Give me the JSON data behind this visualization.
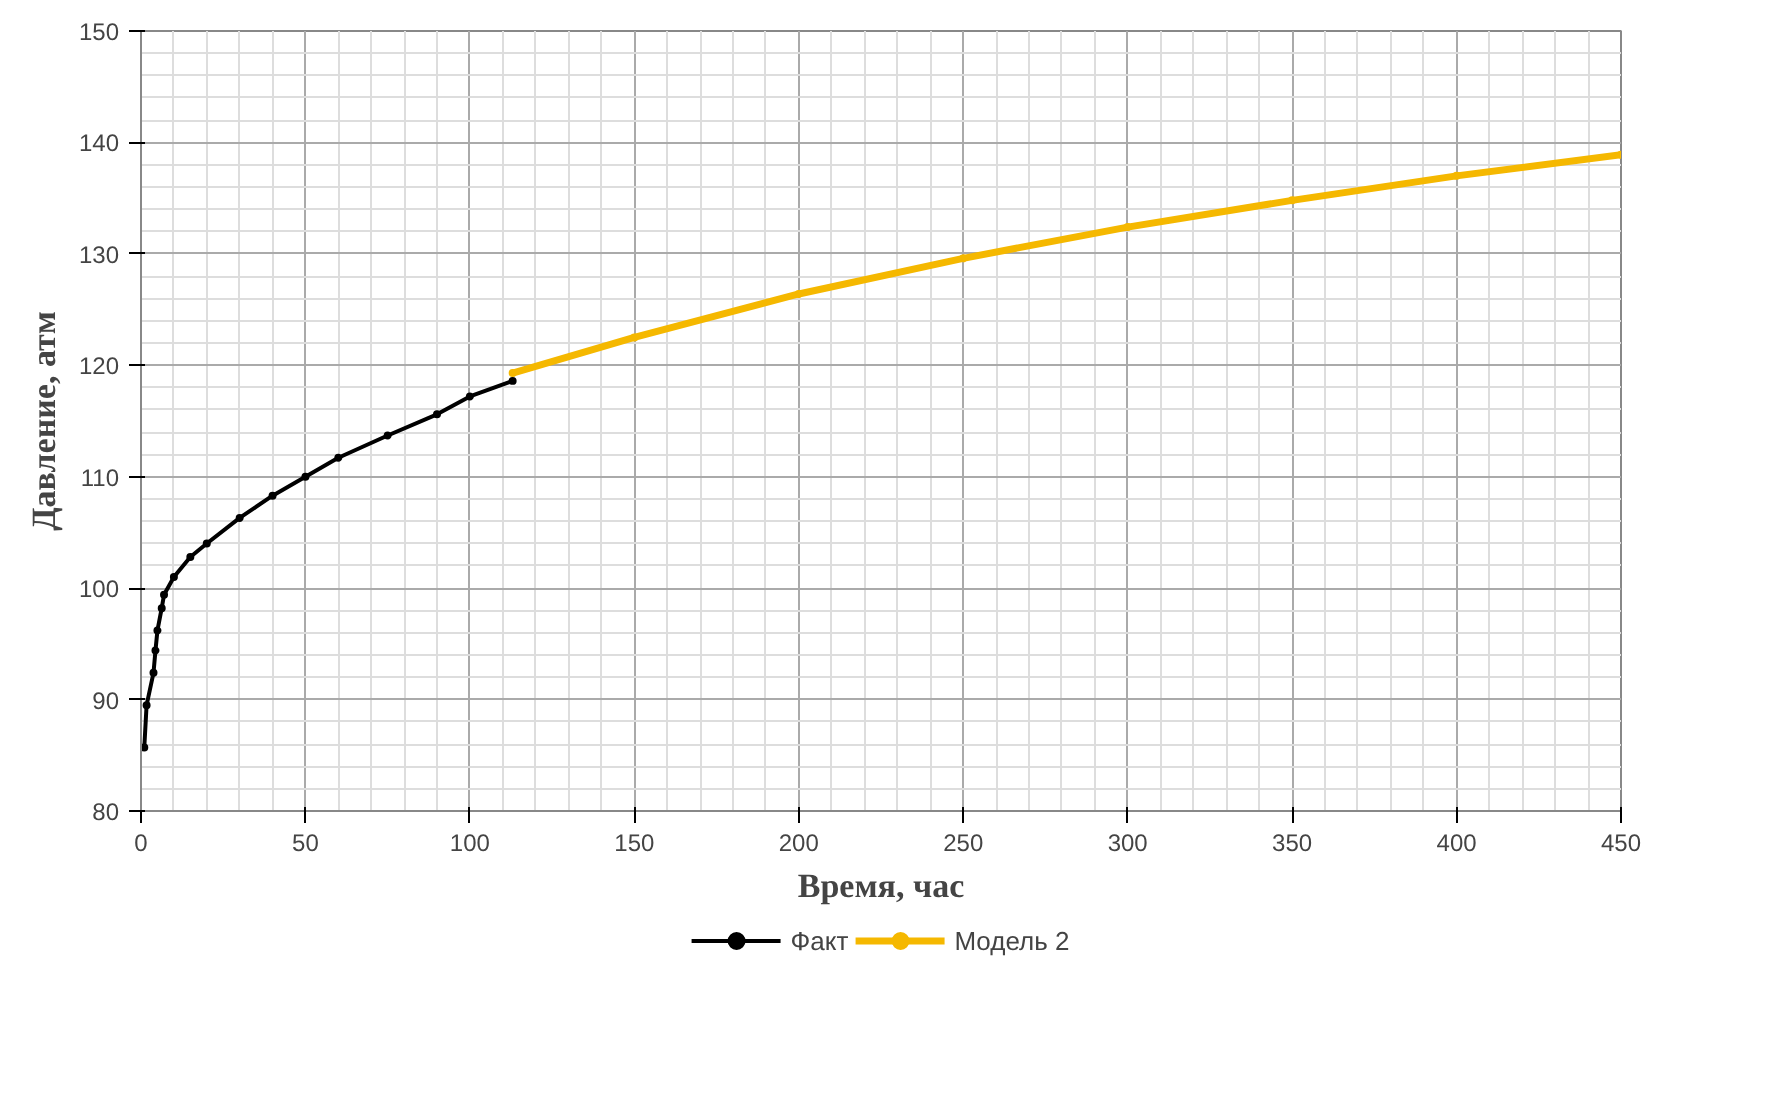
{
  "chart_data": {
    "type": "line",
    "xlabel": "Время, час",
    "ylabel": "Давление, атм",
    "xlim": [
      0,
      450
    ],
    "xticks": [
      0,
      50,
      100,
      150,
      200,
      250,
      300,
      350,
      400,
      450
    ],
    "ylim": [
      80,
      150
    ],
    "yticks": [
      80,
      90,
      100,
      110,
      120,
      130,
      140,
      150
    ],
    "grid": true,
    "legend": "bottom",
    "marker": "circle",
    "series": [
      {
        "name": "Факт",
        "color": "#000000",
        "x": [
          1,
          1.7,
          3.8,
          4.4,
          5,
          6.3,
          7,
          10,
          15,
          20,
          30,
          40,
          50,
          60,
          75,
          90,
          100,
          113
        ],
        "values": [
          85.7,
          89.5,
          92.4,
          94.4,
          96.2,
          98.2,
          99.4,
          101,
          102.8,
          104,
          106.3,
          108.3,
          110,
          111.7,
          113.7,
          115.6,
          117.2,
          118.6
        ]
      },
      {
        "name": "Модель 2",
        "color": "#f5b800",
        "x": [
          113,
          150,
          200,
          250,
          300,
          350,
          400,
          450
        ],
        "values": [
          119.3,
          122.5,
          126.4,
          129.6,
          132.4,
          134.8,
          137,
          138.9
        ]
      }
    ]
  }
}
